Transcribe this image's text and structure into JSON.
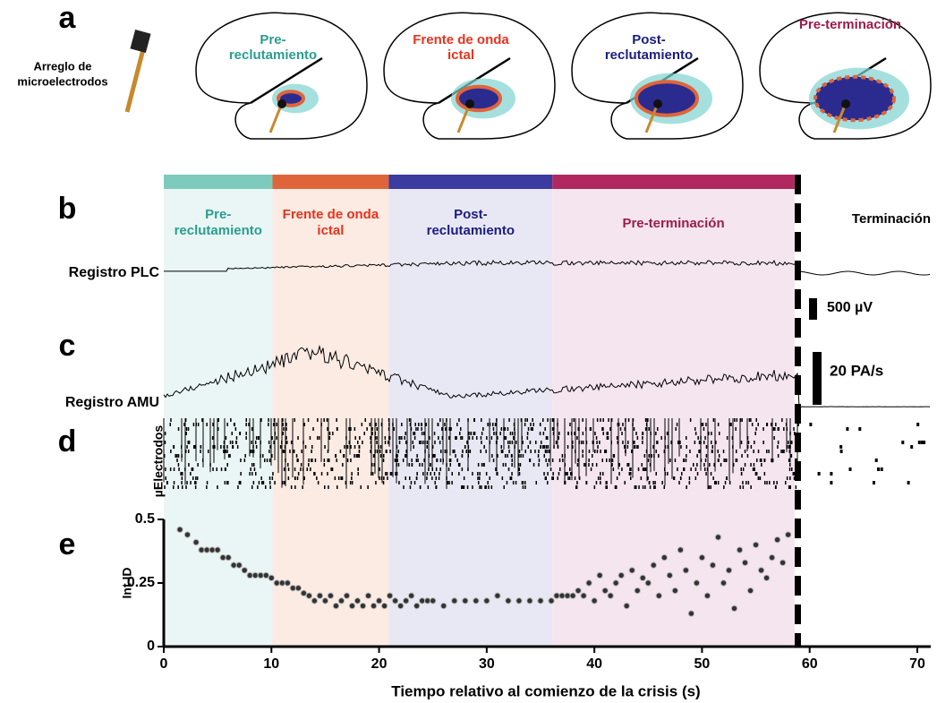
{
  "panel_labels": [
    "a",
    "b",
    "c",
    "d",
    "e"
  ],
  "panel_a": {
    "electrode_label": [
      "Arreglo de",
      "microelectrodos"
    ],
    "stages": [
      {
        "label": [
          "Pre-",
          "reclutamiento"
        ],
        "color": "#2a9d8f"
      },
      {
        "label": [
          "Frente de onda",
          "ictal"
        ],
        "color": "#e8331e"
      },
      {
        "label": [
          "Post-",
          "reclutamiento"
        ],
        "color": "#1c1c80"
      },
      {
        "label": [
          "Pre-terminación"
        ],
        "color": "#9b1c4a"
      }
    ]
  },
  "traces": {
    "plc_label": "Registro PLC",
    "amu_label": "Registro AMU",
    "raster_label": "µElectrodos",
    "plc_scale": "500 µV",
    "amu_scale": "20 PA/s",
    "termination": "Terminación"
  },
  "chart_data": {
    "type": "scatter",
    "xlabel": "Tiempo relativo al comienzo de la crisis (s)",
    "ylabel": "Int ID",
    "xlim": [
      0,
      71
    ],
    "ylim": [
      0,
      0.5
    ],
    "xticks": [
      0,
      10,
      20,
      30,
      40,
      50,
      60,
      70
    ],
    "yticks": [
      0,
      0.25,
      0.5
    ],
    "termination_x": 58.9,
    "phases": [
      {
        "label": [
          "Pre-",
          "reclutamiento"
        ],
        "start": 0,
        "end": 10.1,
        "color": "#7ecbbd",
        "background": "#eaf6f5",
        "text_color": "#2a9d8f"
      },
      {
        "label": [
          "Frente de onda",
          "ictal"
        ],
        "start": 10.1,
        "end": 20.9,
        "color": "#e0643a",
        "background": "#fbebe3",
        "text_color": "#e8331e"
      },
      {
        "label": [
          "Post-",
          "reclutamiento"
        ],
        "start": 20.9,
        "end": 36.1,
        "color": "#3b3ba0",
        "background": "#e8e8f4",
        "text_color": "#1c1c80"
      },
      {
        "label": [
          "Pre-terminación"
        ],
        "start": 36.1,
        "end": 58.6,
        "color": "#b0285f",
        "background": "#f5e5ef",
        "text_color": "#9b1c4a"
      }
    ],
    "marker_color": "#333333",
    "x": [
      1.5,
      2.2,
      3,
      3.5,
      4,
      4.5,
      5,
      5.5,
      6,
      6.5,
      7,
      7.5,
      8,
      8.5,
      9,
      9.5,
      10,
      10.5,
      11,
      11.5,
      12,
      12.5,
      13,
      13.5,
      14,
      14.5,
      15,
      15.5,
      16,
      16.5,
      17,
      17.5,
      18,
      18.5,
      19,
      19.5,
      20,
      20.5,
      21,
      21.5,
      22,
      22.5,
      23,
      23.5,
      24,
      24.5,
      25,
      26,
      27,
      28,
      29,
      30,
      31,
      32,
      33,
      34,
      35,
      36,
      36.5,
      37,
      37.5,
      38,
      38.5,
      39,
      39.5,
      40,
      40.5,
      41,
      41.5,
      42,
      42.5,
      43,
      43.5,
      44,
      44.5,
      45,
      45.5,
      46,
      46.5,
      47,
      47.5,
      48,
      48.5,
      49,
      49.5,
      50,
      50.5,
      51,
      51.5,
      52,
      52.5,
      53,
      53.5,
      54,
      54.5,
      55,
      55.5,
      56,
      56.5,
      57,
      57.5,
      58
    ],
    "values": [
      0.46,
      0.44,
      0.41,
      0.38,
      0.38,
      0.38,
      0.38,
      0.35,
      0.35,
      0.32,
      0.32,
      0.3,
      0.28,
      0.28,
      0.28,
      0.28,
      0.27,
      0.25,
      0.25,
      0.25,
      0.23,
      0.23,
      0.21,
      0.2,
      0.18,
      0.2,
      0.18,
      0.2,
      0.16,
      0.18,
      0.2,
      0.16,
      0.18,
      0.16,
      0.2,
      0.16,
      0.18,
      0.16,
      0.2,
      0.18,
      0.16,
      0.18,
      0.2,
      0.16,
      0.18,
      0.18,
      0.18,
      0.16,
      0.18,
      0.18,
      0.18,
      0.18,
      0.2,
      0.18,
      0.18,
      0.18,
      0.18,
      0.18,
      0.2,
      0.2,
      0.2,
      0.2,
      0.22,
      0.2,
      0.25,
      0.18,
      0.28,
      0.22,
      0.2,
      0.25,
      0.28,
      0.16,
      0.3,
      0.22,
      0.27,
      0.25,
      0.32,
      0.2,
      0.35,
      0.28,
      0.22,
      0.38,
      0.3,
      0.13,
      0.25,
      0.35,
      0.2,
      0.32,
      0.43,
      0.25,
      0.3,
      0.15,
      0.38,
      0.33,
      0.22,
      0.4,
      0.3,
      0.27,
      0.35,
      0.42,
      0.33,
      0.44
    ]
  }
}
